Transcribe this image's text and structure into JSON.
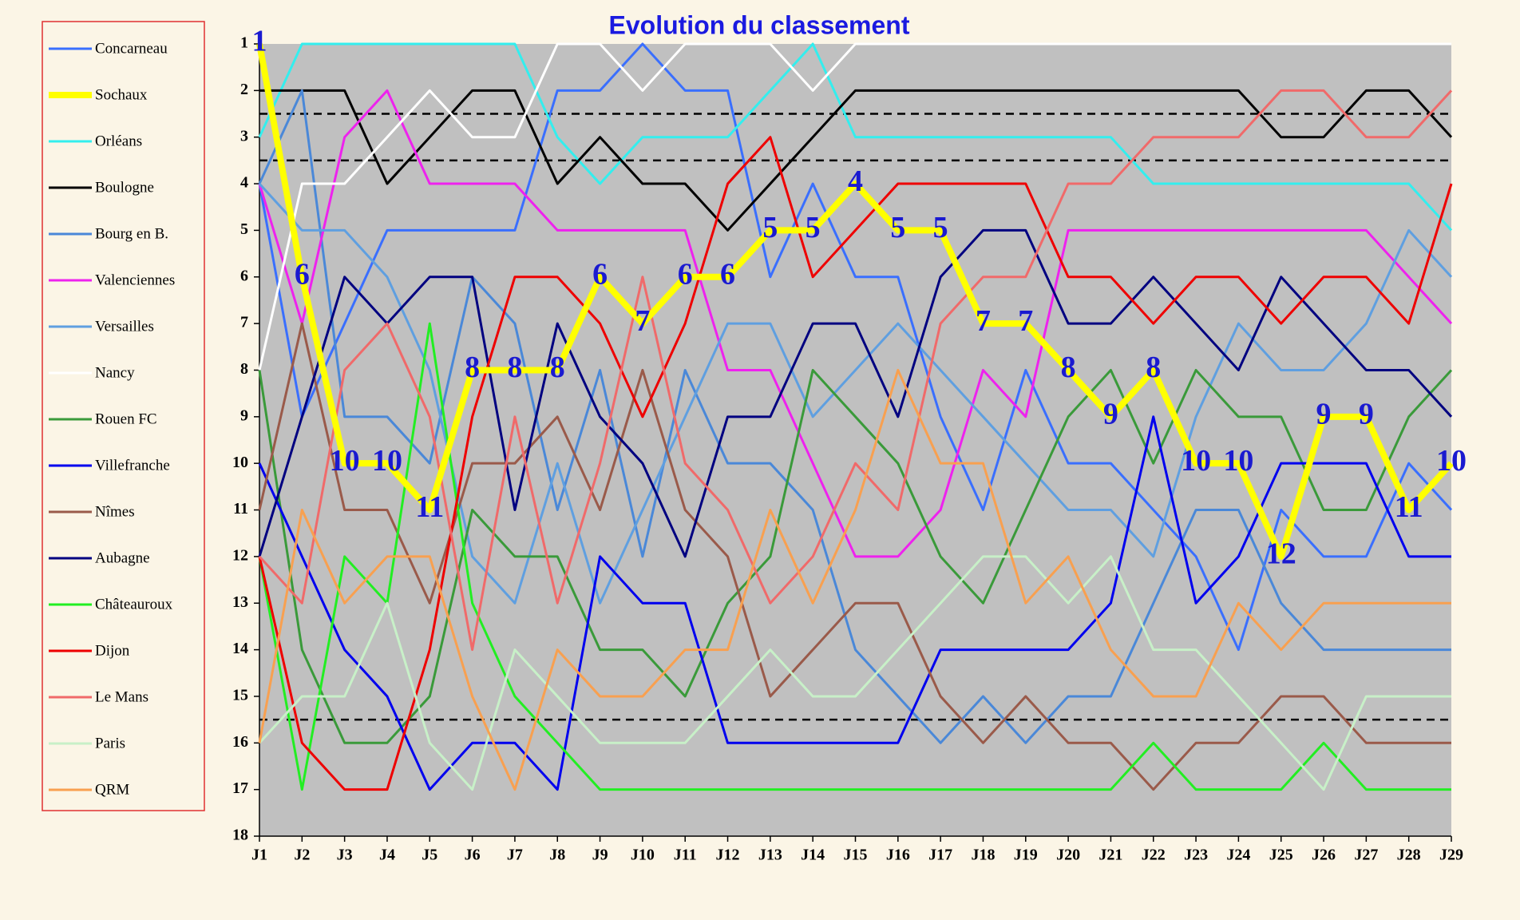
{
  "chart_data": {
    "type": "line",
    "title": "Evolution du classement",
    "categories": [
      "J1",
      "J2",
      "J3",
      "J4",
      "J5",
      "J6",
      "J7",
      "J8",
      "J9",
      "J10",
      "J11",
      "J12",
      "J13",
      "J14",
      "J15",
      "J16",
      "J17",
      "J18",
      "J19",
      "J20",
      "J21",
      "J22",
      "J23",
      "J24",
      "J25",
      "J26",
      "J27",
      "J28",
      "J29"
    ],
    "ylim": [
      18,
      1
    ],
    "yticks": [
      1,
      2,
      3,
      4,
      5,
      6,
      7,
      8,
      9,
      10,
      11,
      12,
      13,
      14,
      15,
      16,
      17,
      18
    ],
    "reference_lines": [
      2.5,
      3.5,
      15.5
    ],
    "legend": "left",
    "series": [
      {
        "name": "Concarneau",
        "color": "#3a6fff",
        "values": [
          4,
          9,
          7,
          5,
          5,
          5,
          5,
          2,
          2,
          1,
          2,
          2,
          6,
          4,
          6,
          6,
          9,
          11,
          8,
          10,
          10,
          11,
          12,
          14,
          11,
          12,
          12,
          10,
          11
        ]
      },
      {
        "name": "Sochaux",
        "color": "#ffff00",
        "width": 8,
        "data_labels": true,
        "values": [
          1,
          6,
          10,
          10,
          11,
          8,
          8,
          8,
          6,
          7,
          6,
          6,
          5,
          5,
          4,
          5,
          5,
          7,
          7,
          8,
          9,
          8,
          10,
          10,
          12,
          9,
          9,
          11,
          10
        ]
      },
      {
        "name": "Orléans",
        "color": "#33eeee",
        "values": [
          3,
          1,
          1,
          1,
          1,
          1,
          1,
          3,
          4,
          3,
          3,
          3,
          2,
          1,
          3,
          3,
          3,
          3,
          3,
          3,
          3,
          4,
          4,
          4,
          4,
          4,
          4,
          4,
          5
        ]
      },
      {
        "name": "Boulogne",
        "color": "#000000",
        "values": [
          2,
          2,
          2,
          4,
          3,
          2,
          2,
          4,
          3,
          4,
          4,
          5,
          4,
          3,
          2,
          2,
          2,
          2,
          2,
          2,
          2,
          2,
          2,
          2,
          3,
          3,
          2,
          2,
          3
        ]
      },
      {
        "name": "Bourg en B.",
        "color": "#4a88d8",
        "values": [
          4,
          2,
          9,
          9,
          10,
          6,
          7,
          11,
          8,
          12,
          8,
          10,
          10,
          11,
          14,
          15,
          16,
          15,
          16,
          15,
          15,
          13,
          11,
          11,
          13,
          14,
          14,
          14,
          14
        ]
      },
      {
        "name": "Valenciennes",
        "color": "#ee22ee",
        "values": [
          4,
          7,
          3,
          2,
          4,
          4,
          4,
          5,
          5,
          5,
          5,
          8,
          8,
          10,
          12,
          12,
          11,
          8,
          9,
          5,
          5,
          5,
          5,
          5,
          5,
          5,
          5,
          6,
          7
        ]
      },
      {
        "name": "Versailles",
        "color": "#5f9fe0",
        "values": [
          4,
          5,
          5,
          6,
          8,
          12,
          13,
          10,
          13,
          11,
          9,
          7,
          7,
          9,
          8,
          7,
          8,
          9,
          10,
          11,
          11,
          12,
          9,
          7,
          8,
          8,
          7,
          5,
          6
        ]
      },
      {
        "name": "Nancy",
        "color": "#ffffff",
        "values": [
          8,
          4,
          4,
          3,
          2,
          3,
          3,
          1,
          1,
          2,
          1,
          1,
          1,
          2,
          1,
          1,
          1,
          1,
          1,
          1,
          1,
          1,
          1,
          1,
          1,
          1,
          1,
          1,
          1
        ]
      },
      {
        "name": "Rouen FC",
        "color": "#3a9a3a",
        "values": [
          8,
          14,
          16,
          16,
          15,
          11,
          12,
          12,
          14,
          14,
          15,
          13,
          12,
          8,
          9,
          10,
          12,
          13,
          11,
          9,
          8,
          10,
          8,
          9,
          9,
          11,
          11,
          9,
          8
        ]
      },
      {
        "name": "Villefranche",
        "color": "#0000ee",
        "values": [
          10,
          12,
          14,
          15,
          17,
          16,
          16,
          17,
          12,
          13,
          13,
          16,
          16,
          16,
          16,
          16,
          14,
          14,
          14,
          14,
          13,
          9,
          13,
          12,
          10,
          10,
          10,
          12,
          12
        ]
      },
      {
        "name": "Nîmes",
        "color": "#9a5a4a",
        "values": [
          11,
          7,
          11,
          11,
          13,
          10,
          10,
          9,
          11,
          8,
          11,
          12,
          15,
          14,
          13,
          13,
          15,
          16,
          15,
          16,
          16,
          17,
          16,
          16,
          15,
          15,
          16,
          16,
          16
        ]
      },
      {
        "name": "Aubagne",
        "color": "#000080",
        "values": [
          12,
          9,
          6,
          7,
          6,
          6,
          11,
          7,
          9,
          10,
          12,
          9,
          9,
          7,
          7,
          9,
          6,
          5,
          5,
          7,
          7,
          6,
          7,
          8,
          6,
          7,
          8,
          8,
          9
        ]
      },
      {
        "name": "Châteauroux",
        "color": "#22ee22",
        "values": [
          12,
          17,
          12,
          13,
          7,
          13,
          15,
          16,
          17,
          17,
          17,
          17,
          17,
          17,
          17,
          17,
          17,
          17,
          17,
          17,
          17,
          16,
          17,
          17,
          17,
          16,
          17,
          17,
          17
        ]
      },
      {
        "name": "Dijon",
        "color": "#ee0000",
        "values": [
          12,
          16,
          17,
          17,
          14,
          9,
          6,
          6,
          7,
          9,
          7,
          4,
          3,
          6,
          5,
          4,
          4,
          4,
          4,
          6,
          6,
          7,
          6,
          6,
          7,
          6,
          6,
          7,
          4
        ]
      },
      {
        "name": "Le Mans",
        "color": "#f06a6a",
        "values": [
          12,
          13,
          8,
          7,
          9,
          14,
          9,
          13,
          10,
          6,
          10,
          11,
          13,
          12,
          10,
          11,
          7,
          6,
          6,
          4,
          4,
          3,
          3,
          3,
          2,
          2,
          3,
          3,
          2
        ]
      },
      {
        "name": "Paris",
        "color": "#c8f0c8",
        "values": [
          16,
          15,
          15,
          13,
          16,
          17,
          14,
          15,
          16,
          16,
          16,
          15,
          14,
          15,
          15,
          14,
          13,
          12,
          12,
          13,
          12,
          14,
          14,
          15,
          16,
          17,
          15,
          15,
          15
        ]
      },
      {
        "name": "QRM",
        "color": "#f8a050",
        "values": [
          16,
          11,
          13,
          12,
          12,
          15,
          17,
          14,
          15,
          15,
          14,
          14,
          11,
          13,
          11,
          8,
          10,
          10,
          13,
          12,
          14,
          15,
          15,
          13,
          14,
          13,
          13,
          13,
          13
        ]
      }
    ]
  }
}
